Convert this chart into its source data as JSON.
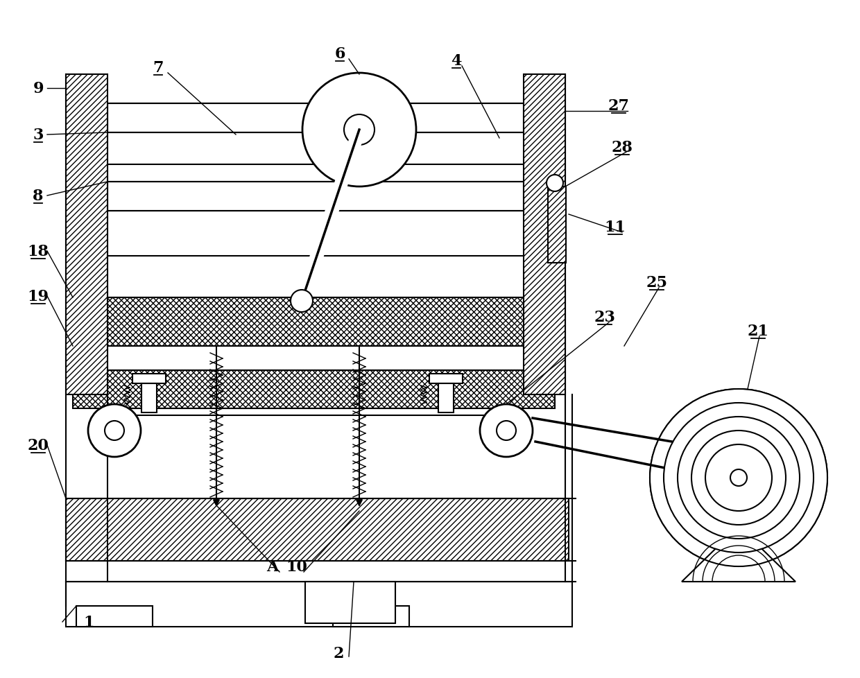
{
  "bg_color": "#ffffff",
  "line_color": "#000000",
  "labels_data": [
    [
      "9",
      55,
      128,
      false
    ],
    [
      "3",
      55,
      195,
      true
    ],
    [
      "7",
      228,
      98,
      true
    ],
    [
      "6",
      490,
      78,
      true
    ],
    [
      "4",
      658,
      88,
      true
    ],
    [
      "27",
      892,
      153,
      true
    ],
    [
      "28",
      897,
      213,
      true
    ],
    [
      "8",
      55,
      283,
      true
    ],
    [
      "11",
      887,
      328,
      true
    ],
    [
      "18",
      55,
      363,
      true
    ],
    [
      "19",
      55,
      428,
      true
    ],
    [
      "23",
      872,
      458,
      true
    ],
    [
      "25",
      947,
      408,
      true
    ],
    [
      "20",
      55,
      643,
      true
    ],
    [
      "1",
      128,
      898,
      false
    ],
    [
      "A",
      393,
      818,
      false
    ],
    [
      "10",
      428,
      818,
      false
    ],
    [
      "2",
      488,
      943,
      false
    ],
    [
      "21",
      1093,
      478,
      true
    ]
  ]
}
